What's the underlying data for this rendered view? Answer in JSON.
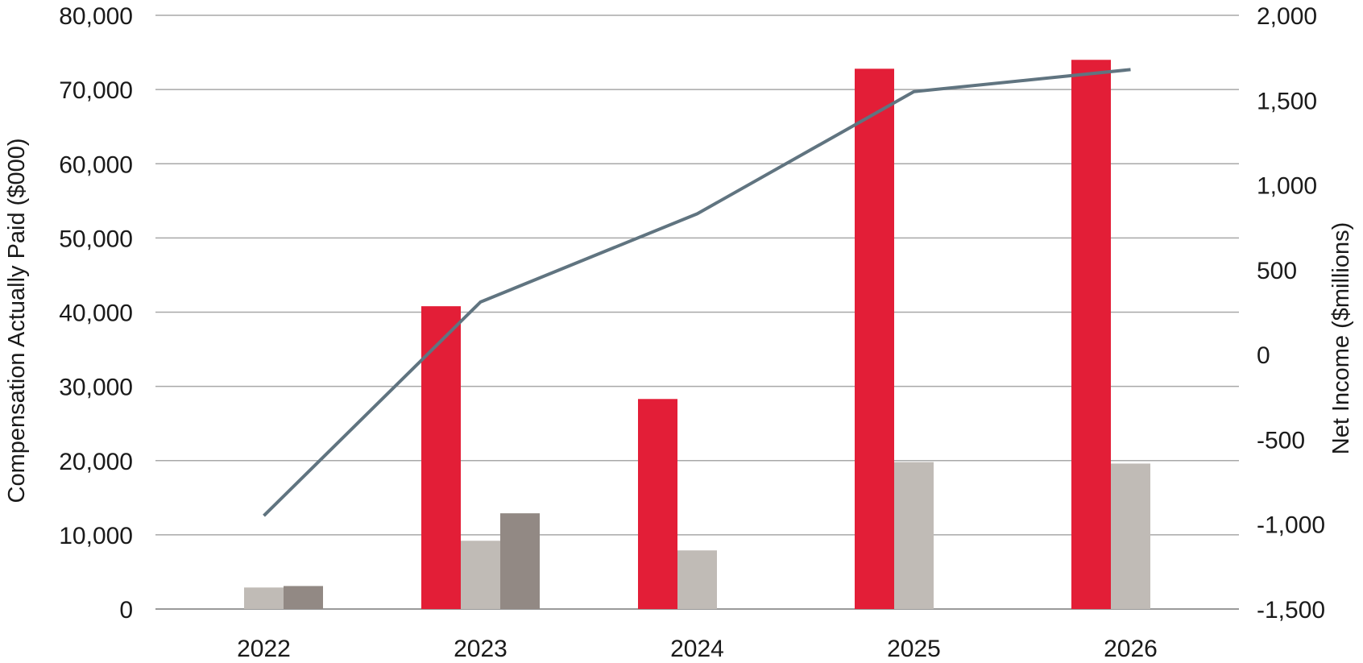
{
  "chart_data": {
    "type": "bar",
    "categories": [
      "2022",
      "2023",
      "2024",
      "2025",
      "2026"
    ],
    "ylabel": "Compensation Actually Paid ($000)",
    "y2label": "Net Income ($millions)",
    "ylim": [
      0,
      80000
    ],
    "y2lim": [
      -1500,
      2000
    ],
    "y_ticks": [
      "0",
      "10,000",
      "20,000",
      "30,000",
      "40,000",
      "50,000",
      "60,000",
      "70,000",
      "80,000"
    ],
    "y2_ticks": [
      "-1,500",
      "-1,000",
      "-500",
      "0",
      "500",
      "1,000",
      "1,500",
      "2,000"
    ],
    "grid": true,
    "legend": "none",
    "series": [
      {
        "axis": "left",
        "kind": "bar",
        "color": "#e31e37",
        "values": [
          null,
          40800,
          28300,
          72800,
          74000
        ]
      },
      {
        "axis": "left",
        "kind": "bar",
        "color": "#c0bbb6",
        "values": [
          2900,
          9200,
          7900,
          19800,
          19600
        ]
      },
      {
        "axis": "left",
        "kind": "bar",
        "color": "#928984",
        "values": [
          3100,
          12900,
          null,
          null,
          null
        ]
      },
      {
        "axis": "right",
        "kind": "line",
        "color": "#607480",
        "values": [
          -950,
          310,
          830,
          1550,
          1680
        ]
      }
    ]
  }
}
